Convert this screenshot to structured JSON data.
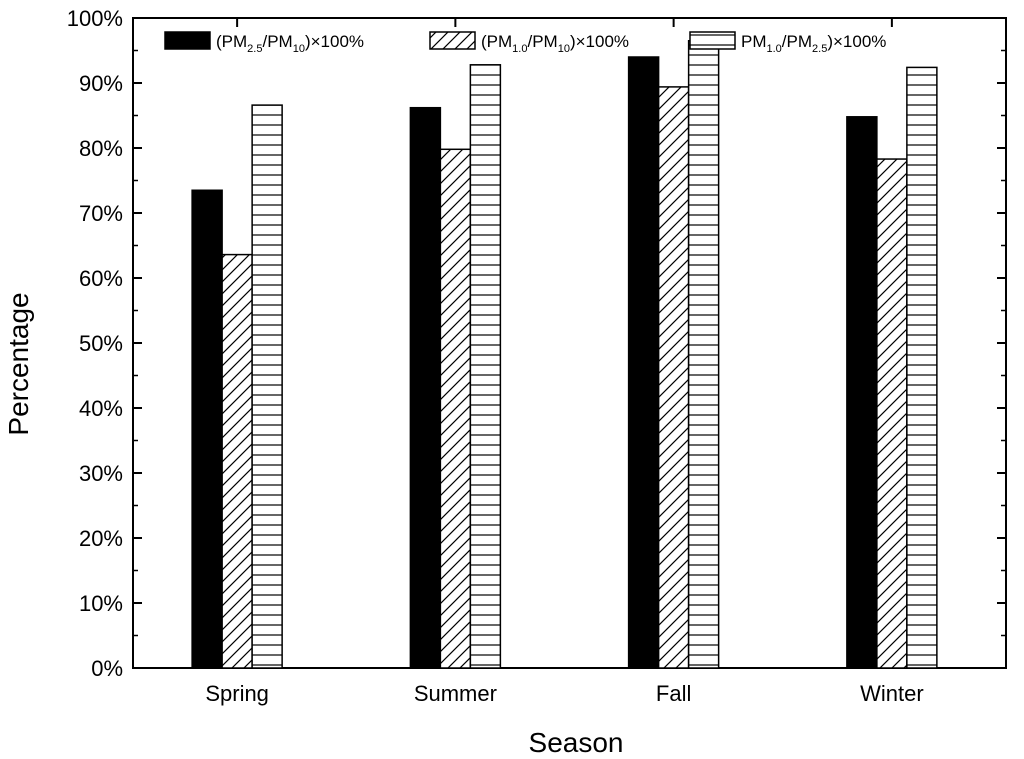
{
  "chart_data": {
    "type": "bar",
    "title": "",
    "xlabel": "Season",
    "ylabel": "Percentage",
    "ylim": [
      0,
      100
    ],
    "yticks": [
      0,
      10,
      20,
      30,
      40,
      50,
      60,
      70,
      80,
      90,
      100
    ],
    "ytick_suffix": "%",
    "categories": [
      "Spring",
      "Summer",
      "Fall",
      "Winter"
    ],
    "series": [
      {
        "name": "(PM2.5/PM10)×100%",
        "legend": {
          "pre": "(PM",
          "sub1": "2.5",
          "mid": "/PM",
          "sub2": "10",
          "post": ")×100%"
        },
        "fill": "solid",
        "values": [
          73.5,
          86.2,
          94.0,
          84.8
        ]
      },
      {
        "name": "(PM1.0/PM10)×100%",
        "legend": {
          "pre": "(PM",
          "sub1": "1.0",
          "mid": "/PM",
          "sub2": "10",
          "post": ")×100%"
        },
        "fill": "diagonal",
        "values": [
          63.6,
          79.8,
          89.4,
          78.3
        ]
      },
      {
        "name": "PM1.0/PM2.5)×100%",
        "legend": {
          "pre": "PM",
          "sub1": "1.0",
          "mid": "/PM",
          "sub2": "2.5",
          "post": ")×100%"
        },
        "fill": "horizontal",
        "values": [
          86.6,
          92.8,
          96.5,
          92.4
        ]
      }
    ],
    "legend_position": "top",
    "grid": false,
    "colors": {
      "axis": "#000000",
      "bar_fill_solid": "#000000",
      "bar_fill_hatch_bg": "#ffffff"
    }
  }
}
